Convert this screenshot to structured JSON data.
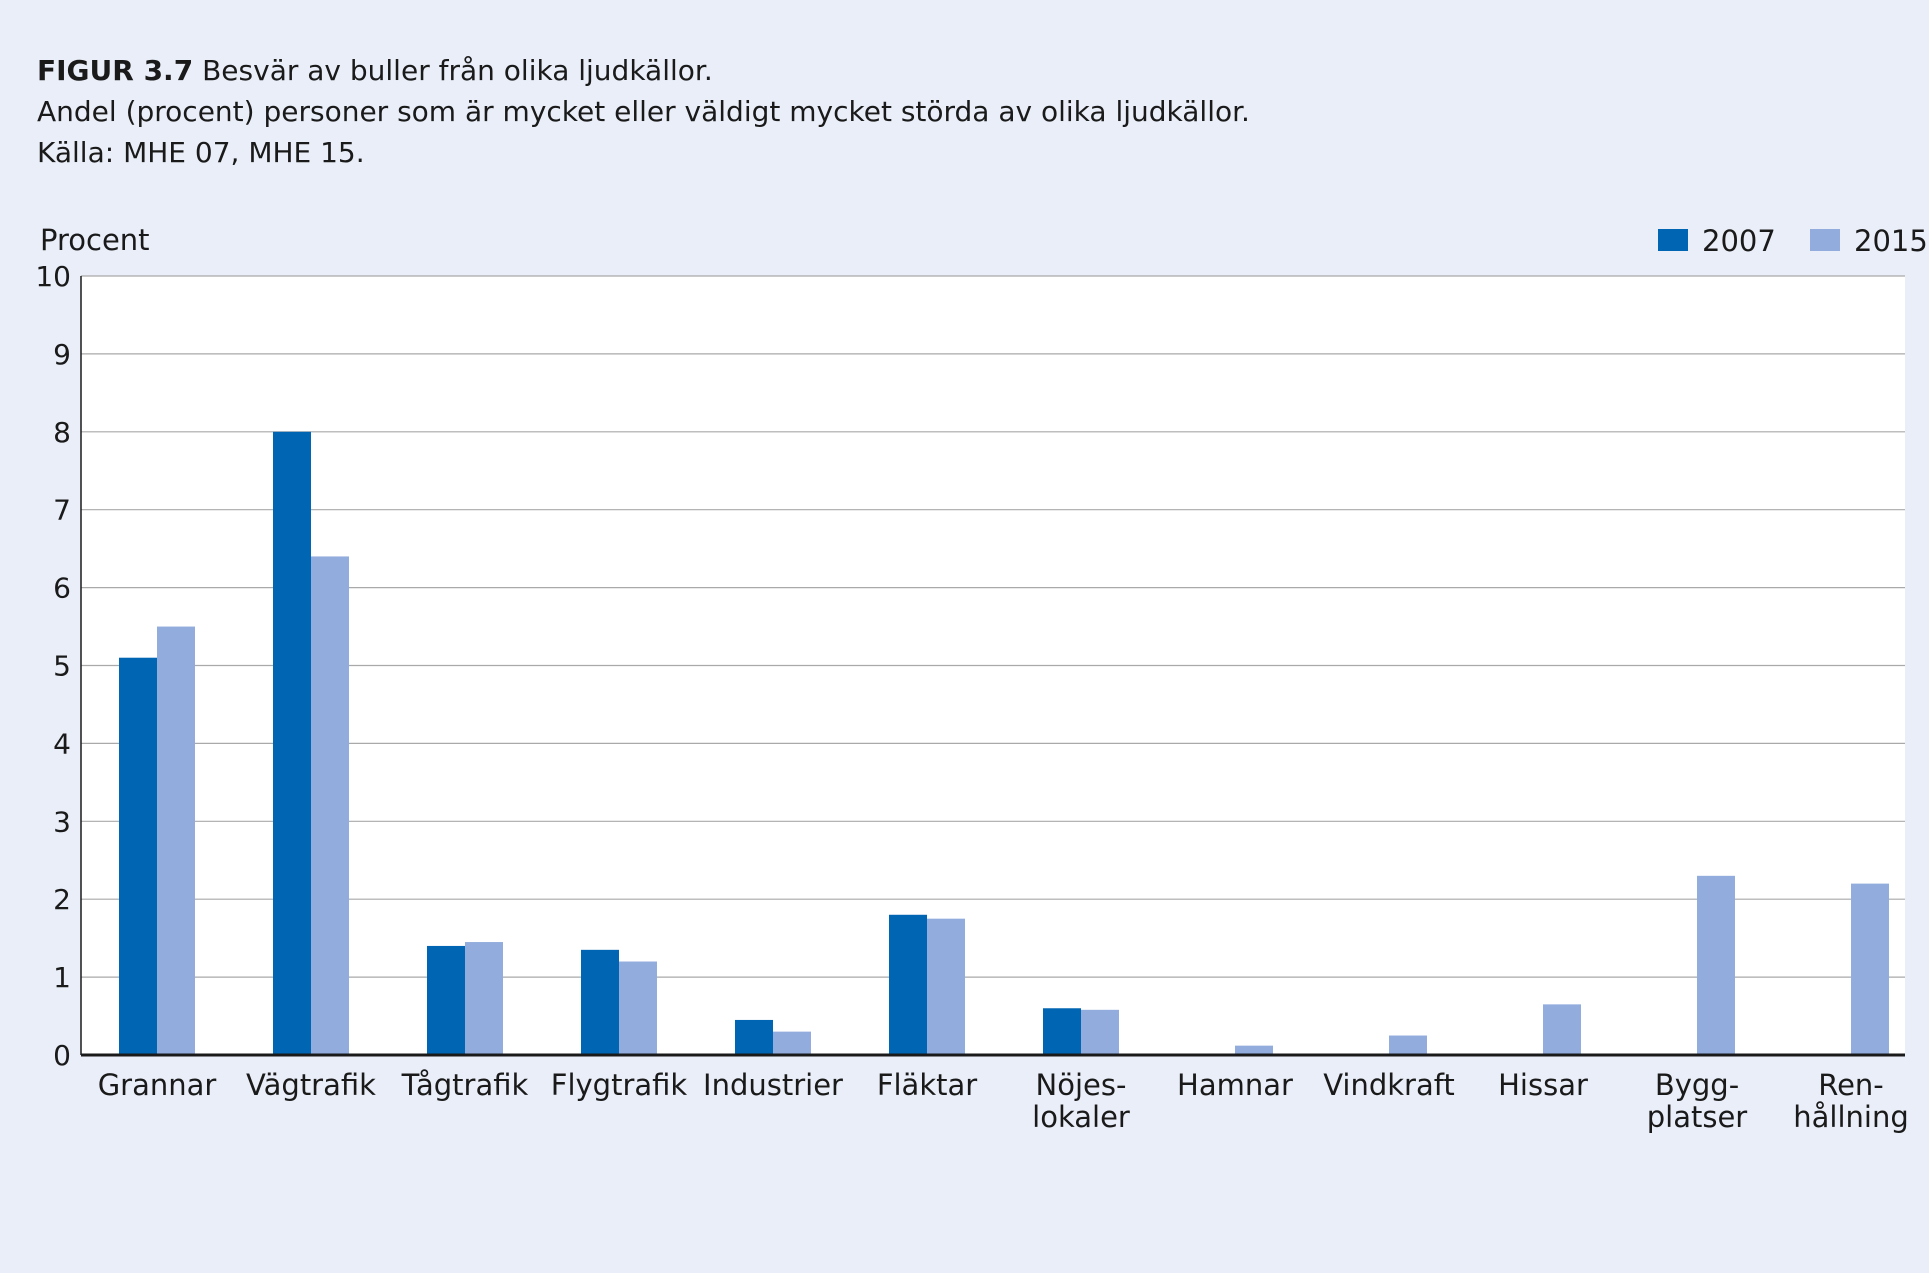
{
  "header": {
    "figure_number": "FIGUR 3.7",
    "title": "Besvär av buller från olika ljudkällor.",
    "subtitle": "Andel (procent) personer som är mycket eller väldigt mycket störda av olika ljudkällor.",
    "source": "Källa: MHE 07, MHE 15."
  },
  "chart_data": {
    "type": "bar",
    "ylabel": "Procent",
    "xlabel": "",
    "ylim": [
      0,
      10
    ],
    "yticks": [
      0,
      1,
      2,
      3,
      4,
      5,
      6,
      7,
      8,
      9,
      10
    ],
    "grid": true,
    "legend_position": "top-right",
    "categories": [
      [
        "Grannar"
      ],
      [
        "Vägtrafik"
      ],
      [
        "Tågtrafik"
      ],
      [
        "Flygtrafik"
      ],
      [
        "Industrier"
      ],
      [
        "Fläktar"
      ],
      [
        "Nöjes-",
        "lokaler"
      ],
      [
        "Hamnar"
      ],
      [
        "Vindkraft"
      ],
      [
        "Hissar"
      ],
      [
        "Bygg-",
        "platser"
      ],
      [
        "Ren-",
        "hållning"
      ]
    ],
    "series": [
      {
        "name": "2007",
        "color": "#0065b2",
        "values": [
          5.1,
          8.0,
          1.4,
          1.35,
          0.45,
          1.8,
          0.6,
          null,
          null,
          null,
          null,
          null
        ]
      },
      {
        "name": "2015",
        "color": "#91acdd",
        "values": [
          5.5,
          6.4,
          1.45,
          1.2,
          0.3,
          1.75,
          0.58,
          0.12,
          0.25,
          0.65,
          2.3,
          2.2
        ]
      }
    ]
  }
}
